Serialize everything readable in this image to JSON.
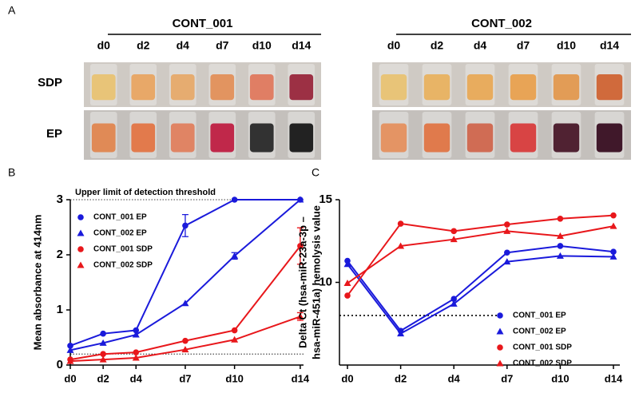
{
  "panel_a": {
    "label": "A",
    "rows": [
      "SDP",
      "EP"
    ],
    "groups": [
      {
        "title": "CONT_001",
        "days": [
          "d0",
          "d2",
          "d4",
          "d7",
          "d10",
          "d14"
        ],
        "tube_colors": [
          [
            "#e8c478",
            "#e8a868",
            "#e6ac70",
            "#e29460",
            "#e07e64",
            "#9c3044"
          ],
          [
            "#e08a56",
            "#e27a4c",
            "#e08464",
            "#c0284a",
            "#323232",
            "#222222"
          ]
        ]
      },
      {
        "title": "CONT_002",
        "days": [
          "d0",
          "d2",
          "d4",
          "d7",
          "d10",
          "d14"
        ],
        "tube_colors": [
          [
            "#e8c478",
            "#e8b466",
            "#e8ac5e",
            "#e8a456",
            "#e29c56",
            "#d06a3c"
          ],
          [
            "#e49464",
            "#e07a4c",
            "#d06c54",
            "#d84444",
            "#502232",
            "#40182a"
          ]
        ]
      }
    ]
  },
  "chart_data": [
    {
      "type": "line",
      "panel": "B",
      "ylabel": "Mean absorbance at 414nm",
      "annotation": "Upper limit of detection threshold",
      "x": [
        0,
        2,
        4,
        7,
        10,
        14
      ],
      "xlim": [
        0,
        14.2
      ],
      "xticks": [
        {
          "value": 0,
          "label": "d0"
        },
        {
          "value": 2,
          "label": "d2"
        },
        {
          "value": 4,
          "label": "d4"
        },
        {
          "value": 7,
          "label": "d7"
        },
        {
          "value": 10,
          "label": "d10"
        },
        {
          "value": 14,
          "label": "d14"
        }
      ],
      "ylim": [
        0,
        3
      ],
      "yticks": [
        0,
        1,
        2,
        3
      ],
      "reference_lines": [
        3,
        0.2
      ],
      "legend": "upper left",
      "series": [
        {
          "name": "CONT_001 EP",
          "color": "#1a1adb",
          "marker": "circle",
          "values": [
            0.35,
            0.57,
            0.63,
            2.53,
            3.0,
            3.0
          ],
          "errors": [
            null,
            null,
            null,
            0.2,
            null,
            null
          ]
        },
        {
          "name": "CONT_002 EP",
          "color": "#1a1adb",
          "marker": "triangle",
          "values": [
            0.27,
            0.4,
            0.55,
            1.12,
            1.98,
            3.0
          ],
          "errors": [
            null,
            null,
            null,
            null,
            0.06,
            null
          ]
        },
        {
          "name": "CONT_001 SDP",
          "color": "#e8171b",
          "marker": "circle",
          "values": [
            0.1,
            0.2,
            0.23,
            0.44,
            0.63,
            2.16
          ],
          "errors": [
            null,
            null,
            null,
            null,
            null,
            0.33
          ]
        },
        {
          "name": "CONT_002 SDP",
          "color": "#e8171b",
          "marker": "triangle",
          "values": [
            0.07,
            0.1,
            0.13,
            0.28,
            0.46,
            0.88
          ],
          "errors": [
            null,
            null,
            null,
            null,
            null,
            0.07
          ]
        }
      ]
    },
    {
      "type": "line",
      "panel": "C",
      "ylabel": [
        "Delta Ct (hsa-miR-23a-3p –",
        "hsa-miR-451a) hemolysis value"
      ],
      "categories": [
        "d0",
        "d2",
        "d4",
        "d7",
        "d10",
        "d14"
      ],
      "ylim": [
        5,
        15
      ],
      "yticks": [
        10,
        15
      ],
      "reference_lines": [
        8
      ],
      "legend": "lower right",
      "series": [
        {
          "name": "CONT_001 EP",
          "color": "#1a1adb",
          "marker": "circle",
          "values": [
            11.3,
            7.07,
            9.0,
            11.8,
            12.2,
            11.85
          ]
        },
        {
          "name": "CONT_002 EP",
          "color": "#1a1adb",
          "marker": "triangle",
          "values": [
            11.1,
            6.9,
            8.7,
            11.25,
            11.6,
            11.55
          ]
        },
        {
          "name": "CONT_001 SDP",
          "color": "#e8171b",
          "marker": "circle",
          "values": [
            9.2,
            13.55,
            13.1,
            13.5,
            13.85,
            14.05
          ]
        },
        {
          "name": "CONT_002 SDP",
          "color": "#e8171b",
          "marker": "triangle",
          "values": [
            9.95,
            12.2,
            12.6,
            13.1,
            12.8,
            13.4
          ]
        }
      ]
    }
  ]
}
